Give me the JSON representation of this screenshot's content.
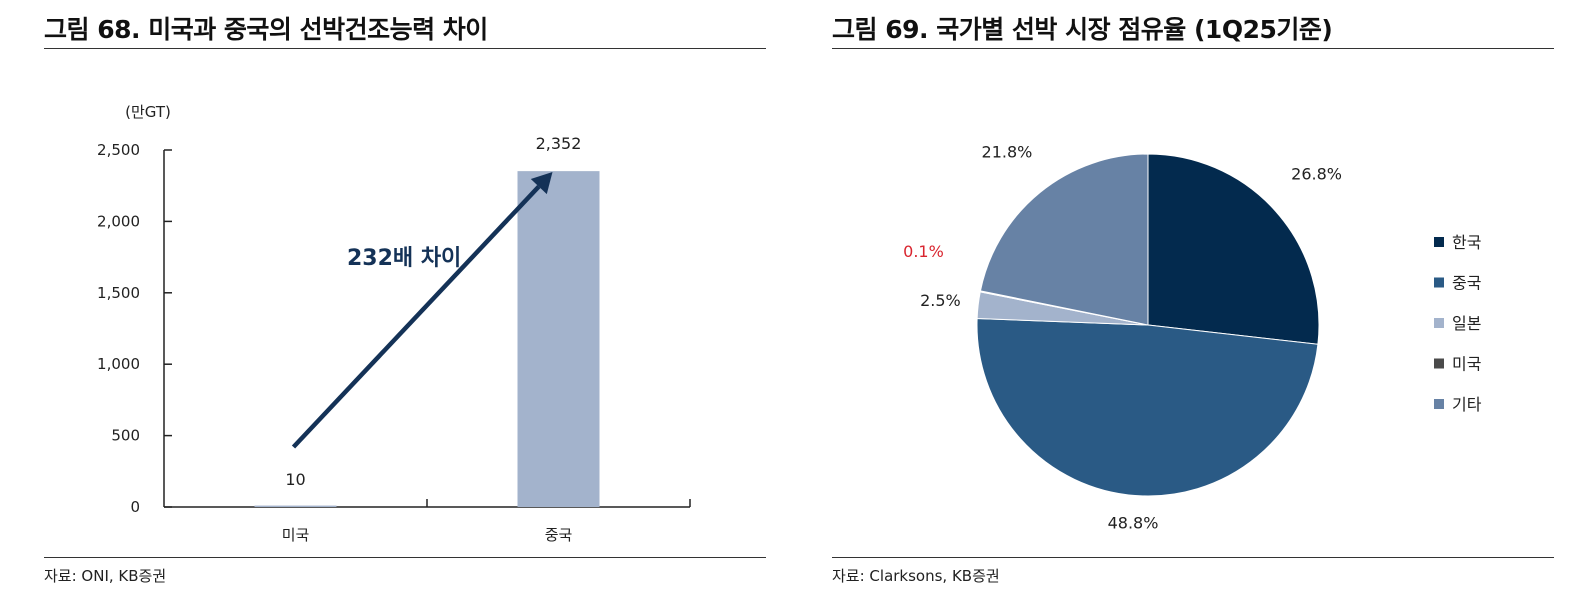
{
  "colors": {
    "bar": "#a3b3cc",
    "arrow": "#143257",
    "axis": "#222222",
    "annotation_text": "#143257",
    "highlight_label": "#d9252f"
  },
  "figures": [
    {
      "title": "그림 68. 미국과 중국의 선박건조능력 차이",
      "source": "자료: ONI, KB증권",
      "unit_label": "(만GT)",
      "annotation": "232배 차이"
    },
    {
      "title": "그림 69. 국가별 선박 시장 점유율 (1Q25기준)",
      "source": "자료: Clarksons, KB증권"
    }
  ],
  "chart_data": [
    {
      "type": "bar",
      "categories": [
        "미국",
        "중국"
      ],
      "values": [
        10,
        2352
      ],
      "value_labels": [
        "10",
        "2,352"
      ],
      "ylabel": "(만GT)",
      "ylim": [
        0,
        2500
      ],
      "yticks": [
        0,
        500,
        1000,
        1500,
        2000,
        2500
      ],
      "ytick_labels": [
        "0",
        "500",
        "1,000",
        "1,500",
        "2,000",
        "2,500"
      ],
      "annotations": [
        "232배 차이"
      ],
      "grid": false
    },
    {
      "type": "pie",
      "slices": [
        {
          "label": "한국",
          "value": 26.8,
          "text": "26.8%",
          "color": "#032a4e"
        },
        {
          "label": "중국",
          "value": 48.8,
          "text": "48.8%",
          "color": "#2a5a85"
        },
        {
          "label": "일본",
          "value": 2.5,
          "text": "2.5%",
          "color": "#a3b3cc"
        },
        {
          "label": "미국",
          "value": 0.1,
          "text": "0.1%",
          "color": "#4a4a4a",
          "label_color": "#d9252f"
        },
        {
          "label": "기타",
          "value": 21.8,
          "text": "21.8%",
          "color": "#6782a5"
        }
      ],
      "start_angle": "12 o'clock",
      "direction": "clockwise",
      "legend": "right"
    }
  ]
}
